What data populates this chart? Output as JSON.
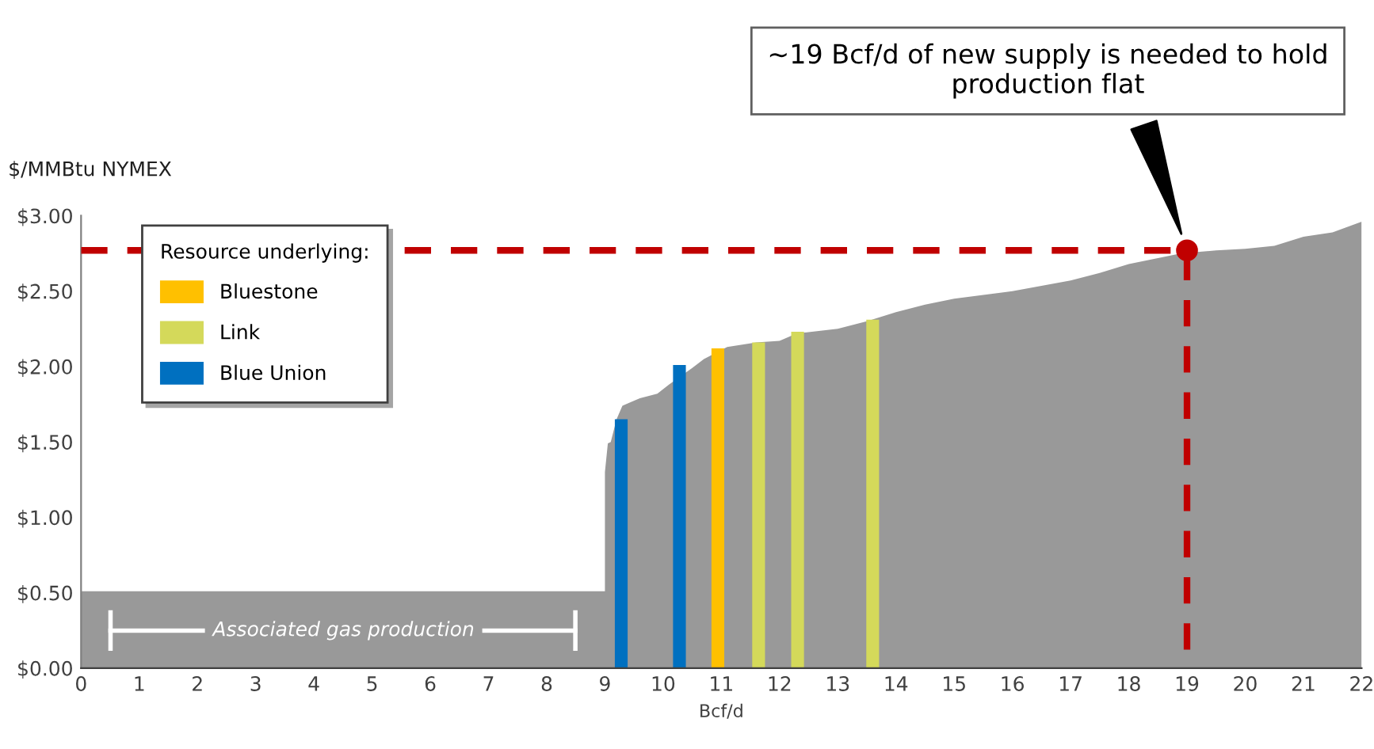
{
  "chart_data": {
    "type": "area",
    "ylabel": "$/MMBtu NYMEX",
    "xlabel": "Bcf/d",
    "legend_title": "Resource underlying:",
    "legend": "top left",
    "grid": false,
    "xlim": [
      0,
      22
    ],
    "xticks": [
      0,
      1,
      2,
      3,
      4,
      5,
      6,
      7,
      8,
      9,
      10,
      11,
      12,
      13,
      14,
      15,
      16,
      17,
      18,
      19,
      20,
      21,
      22
    ],
    "ylim": [
      0,
      3
    ],
    "yticks": [
      {
        "value": 0,
        "label": "$0.00"
      },
      {
        "value": 0.5,
        "label": "$0.50"
      },
      {
        "value": 1,
        "label": "$1.00"
      },
      {
        "value": 1.5,
        "label": "$1.50"
      },
      {
        "value": 2,
        "label": "$2.00"
      },
      {
        "value": 2.5,
        "label": "$2.50"
      },
      {
        "value": 3,
        "label": "$3.00"
      }
    ],
    "series": [
      {
        "color": "#999999",
        "x": [
          0,
          9.0,
          9.0,
          9.05,
          9.1,
          9.2,
          9.3,
          9.6,
          9.9,
          10.1,
          10.5,
          10.7,
          11.1,
          11.6,
          12.0,
          12.3,
          13.0,
          13.5,
          14.0,
          14.5,
          15.0,
          16.0,
          17.0,
          17.5,
          18.0,
          18.9,
          19.5,
          20.0,
          20.5,
          21.0,
          21.5,
          22.0
        ],
        "values": [
          0.51,
          0.51,
          1.3,
          1.49,
          1.5,
          1.65,
          1.74,
          1.79,
          1.82,
          1.88,
          1.99,
          2.05,
          2.13,
          2.16,
          2.17,
          2.22,
          2.25,
          2.3,
          2.36,
          2.41,
          2.45,
          2.5,
          2.57,
          2.62,
          2.68,
          2.75,
          2.77,
          2.78,
          2.8,
          2.86,
          2.89,
          2.96
        ]
      },
      {
        "type": "bar",
        "name": "Bluestone",
        "color": "#ffc000",
        "x": [
          10.94
        ],
        "values": [
          2.12
        ]
      },
      {
        "type": "bar",
        "name": "Link",
        "color": "#d4d95a",
        "x": [
          11.64,
          12.31,
          13.6
        ],
        "values": [
          2.16,
          2.23,
          2.31
        ]
      },
      {
        "type": "bar",
        "name": "Blue Union",
        "color": "#0070c0",
        "x": [
          9.28,
          10.28
        ],
        "values": [
          1.65,
          2.01
        ]
      },
      {
        "type": "line",
        "color": "#c00000",
        "line_style": "dashed",
        "x": [
          0,
          19,
          19
        ],
        "values": [
          2.77,
          2.77,
          0
        ]
      },
      {
        "type": "scatter",
        "color": "#c00000",
        "marker": "circle",
        "x": [
          19
        ],
        "values": [
          2.77
        ]
      }
    ],
    "annotations": [
      "~19 Bcf/d of new supply is needed to hold production flat",
      "Associated gas production"
    ]
  }
}
